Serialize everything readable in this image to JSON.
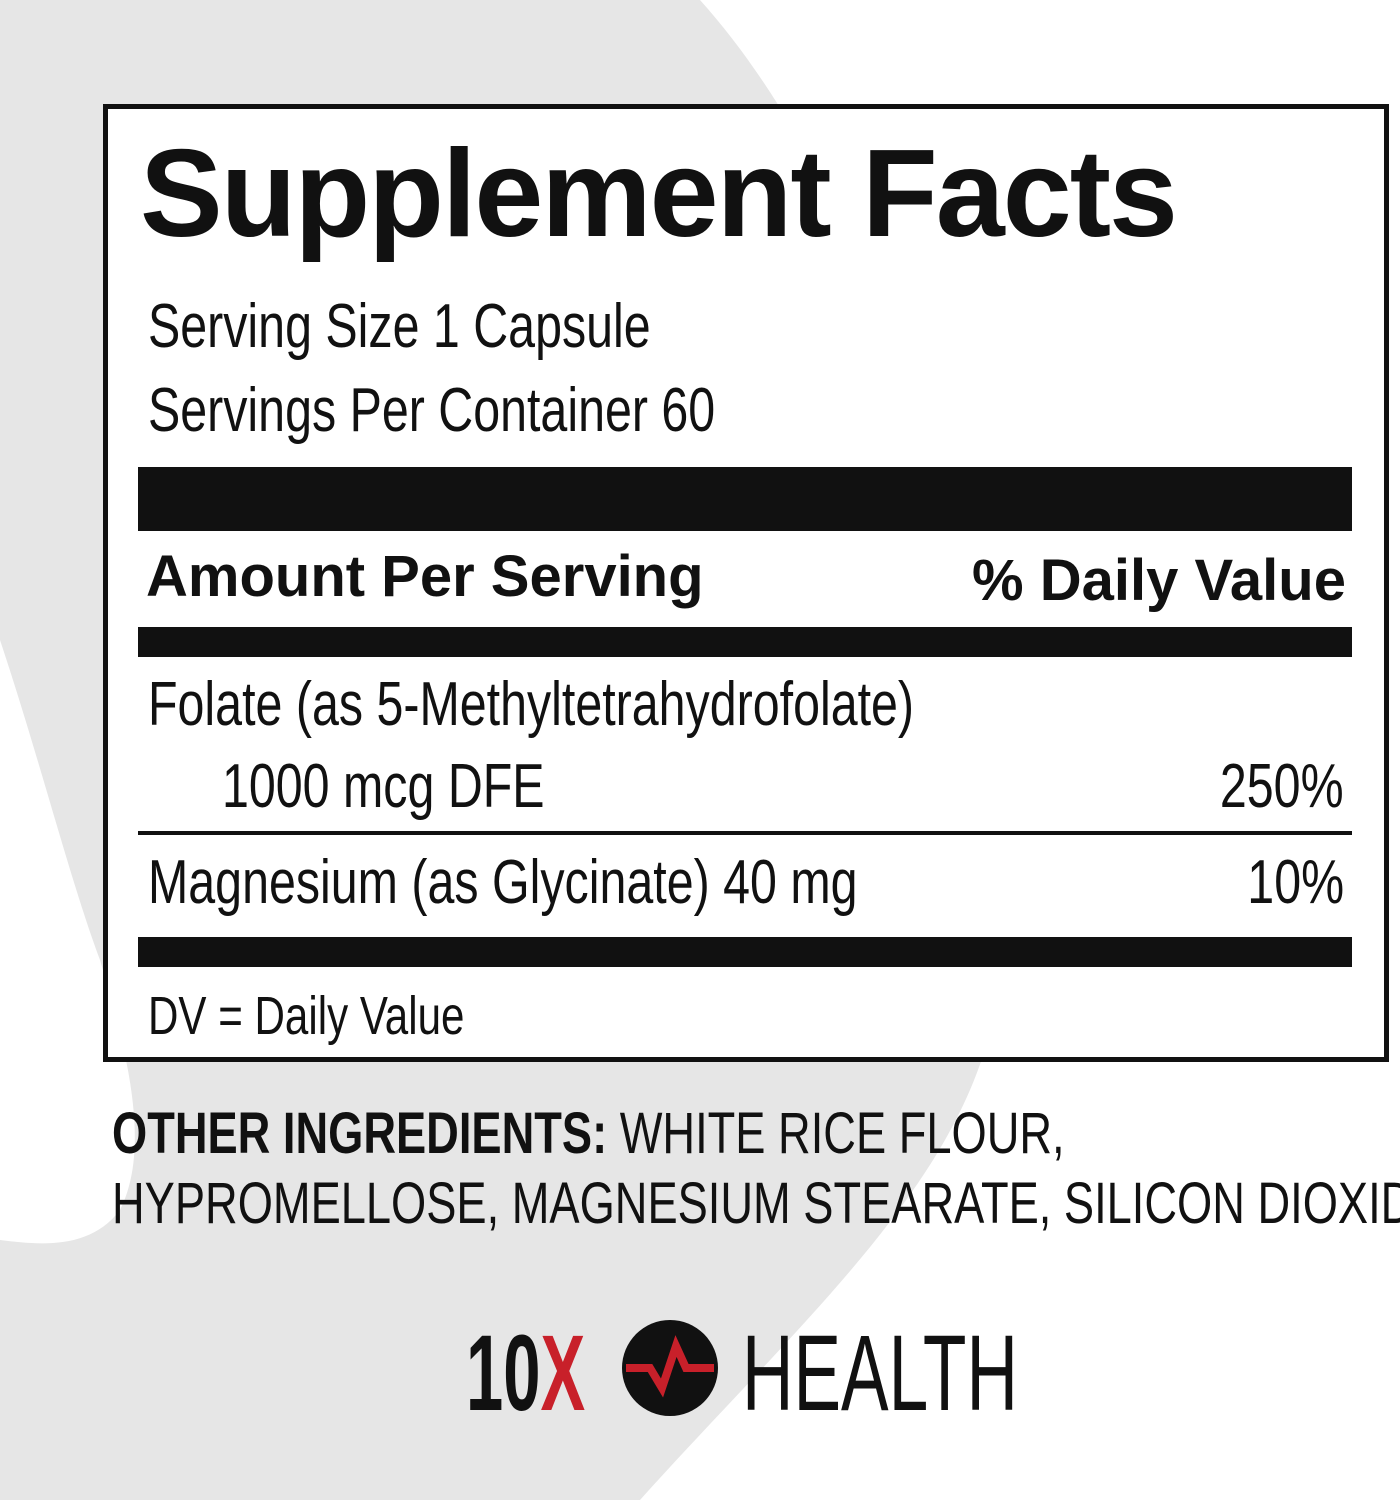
{
  "panel": {
    "title": "Supplement Facts",
    "serving_size": "Serving Size 1 Capsule",
    "servings_per_container": "Servings Per Container 60",
    "header_amount": "Amount Per Serving",
    "header_dv": "% Daily Value",
    "rows": [
      {
        "name": "Folate (as 5-Methyltetrahydrofolate)",
        "amount": "1000 mcg DFE",
        "dv": "250%"
      },
      {
        "name": "Magnesium (as Glycinate) 40 mg",
        "dv": "10%"
      }
    ],
    "footnote": "DV = Daily Value"
  },
  "other_ingredients": {
    "label": "OTHER INGREDIENTS:",
    "line1": "WHITE RICE FLOUR,",
    "line2": "HYPROMELLOSE, MAGNESIUM STEARATE, SILICON DIOXIDE"
  },
  "logo": {
    "text_left": "10",
    "text_x": "X",
    "text_right": "HEALTH",
    "icon": "heartbeat-circle-icon"
  },
  "colors": {
    "background_gray": "#e6e6e6",
    "brand_red": "#c8202a",
    "text": "#111111"
  }
}
